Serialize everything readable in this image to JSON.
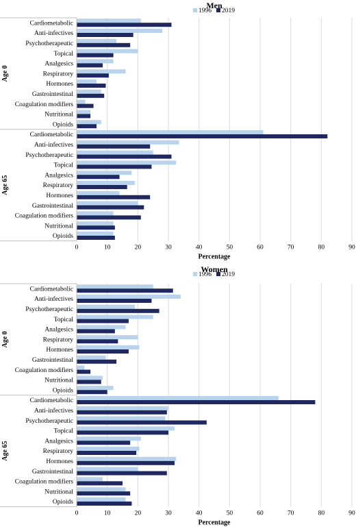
{
  "colors": {
    "1996": "#b7d3ee",
    "2019": "#1f2860"
  },
  "chart_data": [
    {
      "type": "bar",
      "orientation": "horizontal",
      "title": "Men",
      "xlabel": "Percentage",
      "xlim": [
        0,
        90
      ],
      "xticks": [
        "0",
        "10",
        "20",
        "30",
        "40",
        "50",
        "60",
        "70",
        "80",
        "90"
      ],
      "legend_position": "top",
      "grid": true,
      "groups": [
        {
          "name": "Age 0",
          "categories": [
            "Cardiometabolic",
            "Anti-infectives",
            "Psychotherapeutic",
            "Topical",
            "Analgesics",
            "Respiratory",
            "Hormones",
            "Gastrointestinal",
            "Coagulation modifiers",
            "Nutritional",
            "Opioids"
          ],
          "series": [
            {
              "name": "1996",
              "values": [
                21,
                28,
                13,
                20,
                12,
                16,
                6.5,
                8,
                2.8,
                4.5,
                8
              ]
            },
            {
              "name": "2019",
              "values": [
                31,
                18.5,
                17.5,
                12,
                8.5,
                10.5,
                9.5,
                9,
                5.5,
                4.5,
                6.5
              ]
            }
          ]
        },
        {
          "name": "Age 65",
          "categories": [
            "Cardiometabolic",
            "Anti-infectives",
            "Psychotherapeutic",
            "Topical",
            "Analgesics",
            "Respiratory",
            "Hormones",
            "Gastrointestinal",
            "Coagulation modifiers",
            "Nutritional",
            "Opioids"
          ],
          "series": [
            {
              "name": "1996",
              "values": [
                61,
                33.5,
                25,
                32.5,
                18,
                19,
                14,
                20,
                12,
                12,
                12
              ]
            },
            {
              "name": "2019",
              "values": [
                82,
                24,
                31,
                24.5,
                14,
                16.5,
                24,
                22,
                21,
                12.5,
                12.5
              ]
            }
          ]
        }
      ]
    },
    {
      "type": "bar",
      "orientation": "horizontal",
      "title": "Women",
      "xlabel": "Percentage",
      "xlim": [
        0,
        90
      ],
      "xticks": [
        "0",
        "10",
        "20",
        "30",
        "40",
        "50",
        "60",
        "70",
        "80",
        "90"
      ],
      "legend_position": "top",
      "grid": true,
      "groups": [
        {
          "name": "Age 0",
          "categories": [
            "Cardiometabolic",
            "Anti-infectives",
            "Psychotherapeutic",
            "Topical",
            "Analgesics",
            "Respiratory",
            "Hormones",
            "Gastrointestinal",
            "Coagulation modifiers",
            "Nutritional",
            "Opioids"
          ],
          "series": [
            {
              "name": "1996",
              "values": [
                25,
                34,
                19,
                25,
                16,
                20,
                20.5,
                9.5,
                2.5,
                8.5,
                12
              ]
            },
            {
              "name": "2019",
              "values": [
                31.5,
                24.5,
                27,
                17,
                12.5,
                13.5,
                17,
                13,
                4.5,
                8,
                10
              ]
            }
          ]
        },
        {
          "name": "Age 65",
          "categories": [
            "Cardiometabolic",
            "Anti-infectives",
            "Psychotherapeutic",
            "Topical",
            "Analgesics",
            "Respiratory",
            "Hormones",
            "Gastrointestinal",
            "Coagulation modifiers",
            "Nutritional",
            "Opioids"
          ],
          "series": [
            {
              "name": "1996",
              "values": [
                66,
                30,
                29,
                32,
                21,
                20.5,
                32.5,
                20,
                8.5,
                16,
                16
              ]
            },
            {
              "name": "2019",
              "values": [
                78,
                29.5,
                42.5,
                30,
                17.5,
                19.5,
                32,
                29.5,
                15,
                17.5,
                18
              ]
            }
          ]
        }
      ]
    }
  ]
}
